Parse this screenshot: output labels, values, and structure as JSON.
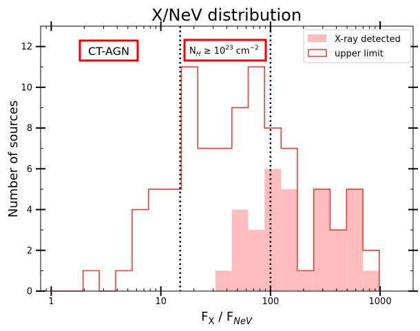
{
  "chart_data": {
    "type": "histogram",
    "title": "X/NeV distribution",
    "xlabel": "F_X / F_NeV",
    "ylabel": "Number of sources",
    "xscale": "log",
    "xlim": [
      0.8,
      2000
    ],
    "ylim": [
      0,
      13
    ],
    "xticks": [
      1,
      10,
      100,
      1000
    ],
    "xtick_labels": [
      "1",
      "10",
      "100",
      "1000"
    ],
    "yticks": [
      0,
      2,
      4,
      6,
      8,
      10,
      12
    ],
    "ytick_labels": [
      "0",
      "2",
      "4",
      "6",
      "8",
      "10",
      "12"
    ],
    "vlines": [
      15,
      100
    ],
    "annotations": {
      "ct_agn": "CT-AGN",
      "nh_main": "N",
      "nh_sub": "H",
      "nh_rest": " ≥ 10",
      "nh_exp": "23",
      "nh_unit": " cm",
      "nh_unit_exp": "−2"
    },
    "legend": {
      "position": "top-right",
      "detected": "X-ray detected",
      "upper_limit": "upper limit"
    },
    "colors": {
      "detected_fill": "#ffbcbc",
      "upper_limit_edge": "#ef3a36",
      "annotation_box": "#ee0000"
    },
    "series": [
      {
        "name": "X-ray detected",
        "style": "filled",
        "bin_edges": [
          31.5,
          44.4,
          62.6,
          88.3,
          125,
          176,
          248,
          350,
          494,
          697,
          983
        ],
        "counts": [
          1,
          4,
          3,
          6,
          5,
          1,
          5,
          3,
          5,
          1
        ]
      },
      {
        "name": "upper limit",
        "style": "step",
        "bin_edges": [
          1.0,
          1.95,
          2.74,
          3.87,
          5.47,
          7.72,
          10.9,
          15.4,
          21.7,
          30.6,
          44.4,
          62.6,
          88.3,
          125,
          176,
          248,
          350,
          494,
          697,
          983
        ],
        "counts": [
          0,
          1,
          0,
          1,
          4,
          5,
          5,
          11,
          7,
          7,
          9,
          11,
          8,
          7,
          1,
          5,
          3,
          5,
          2
        ]
      }
    ]
  }
}
